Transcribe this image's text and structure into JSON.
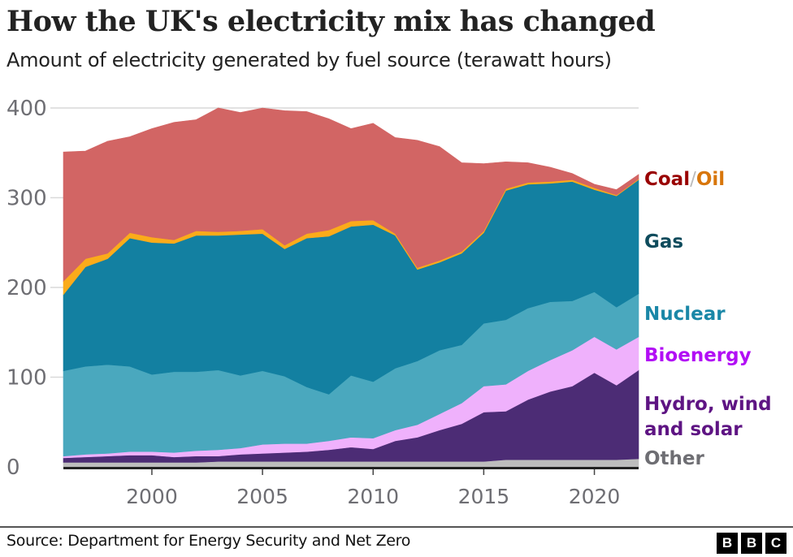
{
  "title": "How the UK's electricity mix has changed",
  "subtitle": "Amount of electricity generated by fuel source (terawatt hours)",
  "source": "Source: Department for Energy Security and Net Zero",
  "logo": [
    "B",
    "B",
    "C"
  ],
  "chart_data": {
    "type": "area",
    "stacked": true,
    "x": [
      1996,
      1997,
      1998,
      1999,
      2000,
      2001,
      2002,
      2003,
      2004,
      2005,
      2006,
      2007,
      2008,
      2009,
      2010,
      2011,
      2012,
      2013,
      2014,
      2015,
      2016,
      2017,
      2018,
      2019,
      2020,
      2021,
      2022
    ],
    "xticks": [
      "2000",
      "2005",
      "2010",
      "2015",
      "2020"
    ],
    "yticks": [
      "0",
      "100",
      "200",
      "300",
      "400"
    ],
    "ylim": [
      0,
      400
    ],
    "xlim": [
      1996,
      2022
    ],
    "grid": true,
    "legend_placement": "right, inline labels",
    "series": [
      {
        "name": "Other",
        "color": "#bdbdbd",
        "label_color": "#6e6e73",
        "values": [
          5,
          5,
          5,
          5,
          5,
          5,
          5,
          6,
          6,
          6,
          6,
          6,
          6,
          6,
          6,
          6,
          6,
          6,
          6,
          6,
          8,
          8,
          8,
          8,
          8,
          8,
          9
        ]
      },
      {
        "name": "Hydro, wind and solar",
        "label_lines": [
          "Hydro, wind",
          "and solar"
        ],
        "color": "#4c2c75",
        "label_color": "#5e1483",
        "values": [
          5,
          6,
          7,
          8,
          8,
          6,
          7,
          6,
          8,
          9,
          10,
          11,
          13,
          16,
          14,
          23,
          27,
          35,
          42,
          55,
          54,
          67,
          76,
          82,
          97,
          83,
          99
        ]
      },
      {
        "name": "Bioenergy",
        "color": "#efb1fc",
        "label_color": "#b20ef5",
        "values": [
          2,
          3,
          3,
          4,
          4,
          5,
          6,
          7,
          7,
          10,
          10,
          9,
          10,
          11,
          12,
          12,
          14,
          18,
          23,
          29,
          30,
          32,
          35,
          40,
          40,
          40,
          37
        ]
      },
      {
        "name": "Nuclear",
        "color": "#4aa8be",
        "label_color": "#1a87a7",
        "values": [
          95,
          98,
          99,
          95,
          86,
          90,
          88,
          89,
          81,
          82,
          75,
          63,
          52,
          69,
          63,
          69,
          71,
          71,
          65,
          70,
          72,
          70,
          65,
          55,
          50,
          47,
          48
        ]
      },
      {
        "name": "Gas",
        "color": "#1380a1",
        "label_color": "#0e4b5c",
        "values": [
          85,
          111,
          118,
          143,
          147,
          143,
          152,
          150,
          157,
          153,
          142,
          166,
          176,
          166,
          175,
          148,
          102,
          98,
          102,
          101,
          144,
          138,
          132,
          133,
          114,
          124,
          127
        ]
      },
      {
        "name": "Oil",
        "color": "#fbab1a",
        "label_color": "#d8760b",
        "values": [
          15,
          9,
          6,
          6,
          6,
          4,
          5,
          4,
          4,
          5,
          4,
          5,
          7,
          6,
          5,
          2,
          2,
          2,
          2,
          2,
          2,
          2,
          2,
          2,
          2,
          1,
          1
        ]
      },
      {
        "name": "Coal",
        "color": "#d26564",
        "label_color": "#990000",
        "values": [
          144,
          120,
          125,
          107,
          121,
          131,
          124,
          138,
          132,
          135,
          150,
          136,
          124,
          103,
          108,
          107,
          142,
          127,
          99,
          75,
          30,
          22,
          16,
          7,
          4,
          6,
          5
        ]
      }
    ],
    "label_separator": "/"
  }
}
